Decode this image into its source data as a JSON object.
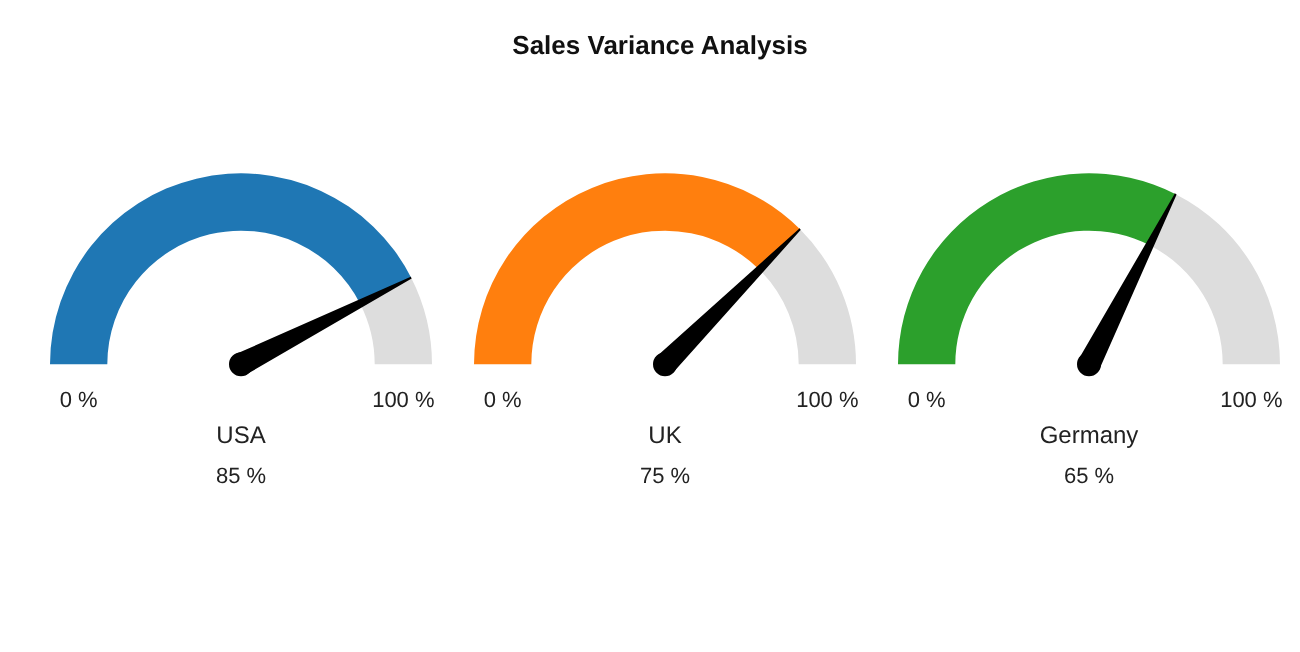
{
  "chart_data": [
    {
      "type": "donut",
      "xlabel": "USA",
      "categories": [
        null,
        null
      ],
      "values": [
        85,
        15
      ],
      "colors": [
        "#1f77b4",
        "#dddddd"
      ],
      "annotations": [
        "0 %",
        "100 %",
        "85 %"
      ]
    },
    {
      "type": "donut",
      "title": "Sales Variance Analysis",
      "xlabel": "UK",
      "categories": [
        null,
        null
      ],
      "values": [
        75,
        25
      ],
      "colors": [
        "#ff7f0e",
        "#dddddd"
      ],
      "annotations": [
        "0 %",
        "100 %",
        "75 %"
      ]
    },
    {
      "type": "donut",
      "xlabel": "Germany",
      "categories": [
        null,
        null
      ],
      "values": [
        65,
        35
      ],
      "colors": [
        "#2ca02c",
        "#dddddd"
      ],
      "annotations": [
        "0 %",
        "100 %",
        "65 %"
      ]
    }
  ]
}
